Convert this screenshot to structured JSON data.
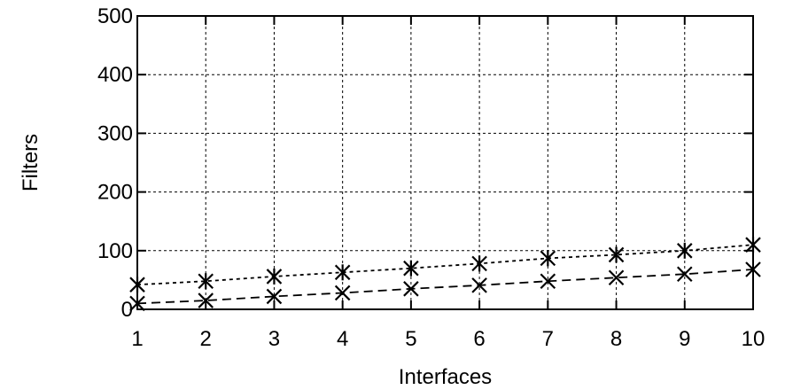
{
  "chart_data": {
    "type": "line",
    "title": "",
    "xlabel": "Interfaces",
    "ylabel": "Filters",
    "x": [
      1,
      2,
      3,
      4,
      5,
      6,
      7,
      8,
      9,
      10
    ],
    "xlim": [
      1,
      10
    ],
    "ylim": [
      0,
      500
    ],
    "xticks": [
      1,
      2,
      3,
      4,
      5,
      6,
      7,
      8,
      9,
      10
    ],
    "yticks": [
      0,
      100,
      200,
      300,
      400,
      500
    ],
    "grid": true,
    "legend": "none",
    "series": [
      {
        "values": [
          42,
          48,
          56,
          63,
          70,
          78,
          87,
          93,
          100,
          110
        ],
        "line_style": "dotted",
        "marker": "star",
        "color": "#000000"
      },
      {
        "values": [
          10,
          15,
          22,
          28,
          35,
          41,
          48,
          54,
          60,
          68
        ],
        "line_style": "dashed",
        "marker": "x",
        "color": "#000000"
      }
    ]
  }
}
